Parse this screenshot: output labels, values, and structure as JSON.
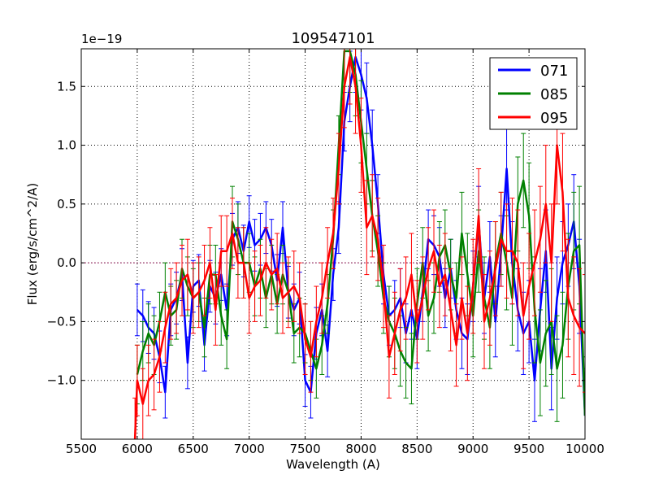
{
  "chart_data": {
    "type": "line",
    "title": "109547101",
    "xlabel": "Wavelength (A)",
    "ylabel": "Flux (erg/s/cm^2/A)",
    "offset_label": "1e−19",
    "xlim": [
      5500,
      10000
    ],
    "ylim": [
      -1.5,
      1.82
    ],
    "xticks": [
      5500,
      6000,
      6500,
      7000,
      7500,
      8000,
      8500,
      9000,
      9500,
      10000
    ],
    "yticks": [
      -1.0,
      -0.5,
      0.0,
      0.5,
      1.0,
      1.5
    ],
    "ytick_labels": [
      "−1.0",
      "−0.5",
      "0.0",
      "0.5",
      "1.0",
      "1.5"
    ],
    "grid": true,
    "legend_position": "top-right",
    "zero_line": 0.0,
    "series": [
      {
        "name": "071",
        "color": "#0000ff",
        "x": [
          6000,
          6050,
          6100,
          6150,
          6200,
          6250,
          6300,
          6350,
          6400,
          6450,
          6500,
          6550,
          6600,
          6650,
          6700,
          6750,
          6800,
          6850,
          6900,
          6950,
          7000,
          7050,
          7100,
          7150,
          7200,
          7250,
          7300,
          7350,
          7400,
          7450,
          7500,
          7550,
          7600,
          7650,
          7700,
          7750,
          7800,
          7850,
          7900,
          7950,
          8000,
          8050,
          8100,
          8150,
          8200,
          8250,
          8300,
          8350,
          8400,
          8450,
          8500,
          8550,
          8600,
          8650,
          8700,
          8750,
          8800,
          8850,
          8900,
          8950,
          9000,
          9050,
          9100,
          9150,
          9200,
          9250,
          9300,
          9350,
          9400,
          9450,
          9500,
          9550,
          9600,
          9650,
          9700,
          9750,
          9800,
          9850,
          9900,
          9950,
          10000
        ],
        "y": [
          -0.4,
          -0.45,
          -0.55,
          -0.6,
          -0.8,
          -1.1,
          -0.4,
          -0.3,
          -0.1,
          -0.85,
          -0.2,
          -0.15,
          -0.7,
          -0.2,
          -0.3,
          -0.1,
          -0.4,
          0.2,
          0.3,
          0.1,
          0.35,
          0.15,
          0.2,
          0.3,
          0.15,
          -0.15,
          0.3,
          -0.25,
          -0.4,
          -0.3,
          -1.0,
          -1.1,
          -0.6,
          -0.4,
          -0.75,
          -0.1,
          0.3,
          1.2,
          1.5,
          1.75,
          1.6,
          1.4,
          1.0,
          0.5,
          -0.1,
          -0.45,
          -0.4,
          -0.3,
          -0.6,
          -0.4,
          -0.65,
          -0.25,
          0.2,
          0.15,
          0.05,
          -0.3,
          -0.05,
          -0.4,
          -0.6,
          -0.65,
          -0.2,
          0.35,
          -0.3,
          0.05,
          -0.5,
          0.1,
          0.8,
          0.0,
          -0.4,
          -0.6,
          -0.5,
          -1.0,
          -0.4,
          0.1,
          -0.9,
          -0.3,
          0.0,
          0.15,
          0.35,
          -0.2,
          -1.3
        ],
        "err": [
          0.22,
          0.22,
          0.22,
          0.22,
          0.22,
          0.22,
          0.22,
          0.22,
          0.22,
          0.22,
          0.22,
          0.22,
          0.22,
          0.22,
          0.22,
          0.22,
          0.22,
          0.22,
          0.22,
          0.22,
          0.22,
          0.22,
          0.22,
          0.22,
          0.22,
          0.22,
          0.22,
          0.22,
          0.22,
          0.22,
          0.22,
          0.22,
          0.22,
          0.22,
          0.22,
          0.22,
          0.22,
          0.25,
          0.3,
          0.3,
          0.3,
          0.3,
          0.3,
          0.25,
          0.25,
          0.25,
          0.25,
          0.25,
          0.25,
          0.25,
          0.25,
          0.25,
          0.25,
          0.25,
          0.25,
          0.25,
          0.25,
          0.25,
          0.3,
          0.3,
          0.3,
          0.3,
          0.3,
          0.3,
          0.3,
          0.3,
          0.35,
          0.35,
          0.35,
          0.35,
          0.35,
          0.35,
          0.35,
          0.35,
          0.35,
          0.35,
          0.35,
          0.35,
          0.4,
          0.4,
          0.4
        ]
      },
      {
        "name": "085",
        "color": "#008000",
        "x": [
          6000,
          6050,
          6100,
          6150,
          6200,
          6250,
          6300,
          6350,
          6400,
          6450,
          6500,
          6550,
          6600,
          6650,
          6700,
          6750,
          6800,
          6850,
          6900,
          6950,
          7000,
          7050,
          7100,
          7150,
          7200,
          7250,
          7300,
          7350,
          7400,
          7450,
          7500,
          7550,
          7600,
          7650,
          7700,
          7750,
          7800,
          7850,
          7900,
          7950,
          8000,
          8050,
          8100,
          8150,
          8200,
          8250,
          8300,
          8350,
          8400,
          8450,
          8500,
          8550,
          8600,
          8650,
          8700,
          8750,
          8800,
          8850,
          8900,
          8950,
          9000,
          9050,
          9100,
          9150,
          9200,
          9250,
          9300,
          9350,
          9400,
          9450,
          9500,
          9550,
          9600,
          9650,
          9700,
          9750,
          9800,
          9850,
          9900,
          9950,
          10000
        ],
        "y": [
          -0.95,
          -0.75,
          -0.6,
          -0.7,
          -0.5,
          -0.25,
          -0.45,
          -0.4,
          -0.05,
          -0.2,
          -0.3,
          -0.25,
          -0.55,
          -0.1,
          -0.1,
          -0.45,
          -0.65,
          0.35,
          0.2,
          0.0,
          0.0,
          -0.2,
          -0.05,
          -0.3,
          -0.1,
          -0.35,
          -0.1,
          -0.25,
          -0.6,
          -0.55,
          -0.6,
          -0.75,
          -0.9,
          -0.7,
          -0.35,
          0.2,
          1.0,
          1.8,
          1.8,
          1.6,
          1.2,
          0.8,
          0.4,
          0.1,
          -0.3,
          -0.5,
          -0.6,
          -0.75,
          -0.85,
          -0.9,
          -0.35,
          0.0,
          -0.45,
          -0.3,
          0.05,
          0.15,
          -0.1,
          -0.3,
          0.25,
          -0.1,
          -0.45,
          0.1,
          -0.3,
          -0.55,
          0.0,
          0.25,
          0.0,
          -0.3,
          0.5,
          0.7,
          0.4,
          -0.4,
          -0.85,
          -0.6,
          -0.5,
          -0.9,
          -0.7,
          -0.2,
          0.1,
          0.15,
          -1.3
        ],
        "err": [
          0.25,
          0.25,
          0.25,
          0.25,
          0.25,
          0.25,
          0.25,
          0.25,
          0.25,
          0.25,
          0.25,
          0.25,
          0.25,
          0.25,
          0.25,
          0.25,
          0.25,
          0.3,
          0.3,
          0.3,
          0.25,
          0.25,
          0.25,
          0.25,
          0.25,
          0.25,
          0.25,
          0.25,
          0.25,
          0.25,
          0.25,
          0.25,
          0.25,
          0.25,
          0.25,
          0.25,
          0.25,
          0.3,
          0.35,
          0.35,
          0.35,
          0.3,
          0.3,
          0.3,
          0.3,
          0.3,
          0.3,
          0.3,
          0.3,
          0.3,
          0.3,
          0.3,
          0.3,
          0.3,
          0.3,
          0.3,
          0.3,
          0.3,
          0.35,
          0.35,
          0.35,
          0.35,
          0.35,
          0.35,
          0.35,
          0.35,
          0.4,
          0.4,
          0.4,
          0.4,
          0.45,
          0.45,
          0.45,
          0.45,
          0.45,
          0.45,
          0.45,
          0.45,
          0.5,
          0.5,
          0.5
        ]
      },
      {
        "name": "095",
        "color": "#ff0000",
        "x": [
          5980,
          6000,
          6050,
          6100,
          6150,
          6200,
          6250,
          6300,
          6350,
          6400,
          6450,
          6500,
          6550,
          6600,
          6650,
          6700,
          6750,
          6800,
          6850,
          6900,
          6950,
          7000,
          7050,
          7100,
          7150,
          7200,
          7250,
          7300,
          7350,
          7400,
          7450,
          7500,
          7550,
          7600,
          7650,
          7700,
          7750,
          7800,
          7850,
          7900,
          7950,
          8000,
          8050,
          8100,
          8150,
          8200,
          8250,
          8300,
          8350,
          8400,
          8450,
          8500,
          8550,
          8600,
          8650,
          8700,
          8750,
          8800,
          8850,
          8900,
          8950,
          9000,
          9050,
          9100,
          9150,
          9200,
          9250,
          9300,
          9350,
          9400,
          9450,
          9500,
          9550,
          9600,
          9650,
          9700,
          9750,
          9800,
          9850,
          9900,
          9950,
          10000
        ],
        "y": [
          -1.5,
          -1.0,
          -1.2,
          -1.0,
          -0.95,
          -0.8,
          -0.55,
          -0.35,
          -0.3,
          -0.15,
          -0.1,
          -0.3,
          -0.25,
          -0.15,
          0.0,
          -0.4,
          0.1,
          0.1,
          0.25,
          0.0,
          0.0,
          -0.3,
          -0.2,
          -0.15,
          0.0,
          -0.1,
          -0.05,
          -0.3,
          -0.25,
          -0.2,
          -0.3,
          -0.65,
          -0.8,
          -0.5,
          -0.3,
          0.0,
          0.25,
          0.8,
          1.5,
          1.75,
          1.5,
          1.0,
          0.3,
          0.4,
          0.2,
          -0.2,
          -0.8,
          -0.6,
          -0.4,
          -0.3,
          -0.1,
          -0.5,
          -0.3,
          -0.05,
          0.1,
          -0.2,
          -0.1,
          -0.4,
          -0.7,
          -0.3,
          -0.6,
          -0.2,
          0.4,
          -0.5,
          -0.3,
          -0.05,
          0.2,
          0.1,
          0.1,
          0.0,
          -0.45,
          -0.2,
          0.0,
          0.2,
          0.5,
          0.0,
          1.0,
          0.6,
          -0.3,
          -0.45,
          -0.55,
          -0.6
        ],
        "err": [
          0.35,
          0.3,
          0.3,
          0.3,
          0.3,
          0.3,
          0.3,
          0.3,
          0.3,
          0.3,
          0.3,
          0.3,
          0.3,
          0.3,
          0.3,
          0.3,
          0.3,
          0.3,
          0.3,
          0.3,
          0.3,
          0.3,
          0.3,
          0.3,
          0.3,
          0.3,
          0.3,
          0.3,
          0.3,
          0.3,
          0.3,
          0.3,
          0.3,
          0.3,
          0.3,
          0.3,
          0.3,
          0.3,
          0.35,
          0.4,
          0.4,
          0.4,
          0.4,
          0.35,
          0.35,
          0.35,
          0.35,
          0.35,
          0.35,
          0.35,
          0.35,
          0.35,
          0.35,
          0.35,
          0.35,
          0.35,
          0.35,
          0.35,
          0.35,
          0.35,
          0.4,
          0.4,
          0.4,
          0.4,
          0.4,
          0.4,
          0.4,
          0.4,
          0.45,
          0.45,
          0.45,
          0.45,
          0.45,
          0.45,
          0.5,
          0.5,
          0.5,
          0.5,
          0.5,
          0.5,
          0.5,
          0.5
        ]
      }
    ]
  }
}
